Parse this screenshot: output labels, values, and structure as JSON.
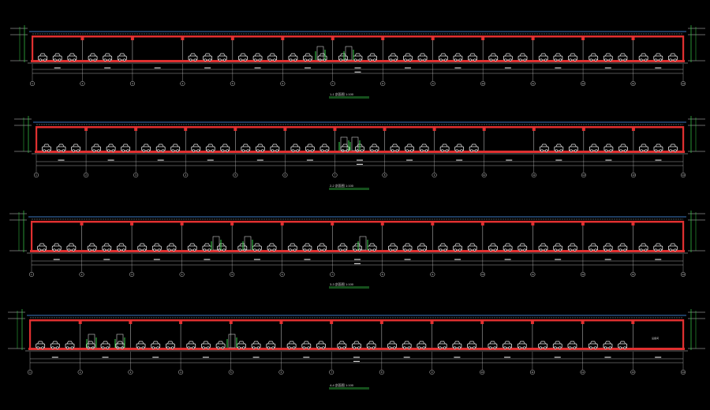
{
  "drawing": {
    "background": "#000000",
    "colors": {
      "structure": "#e03030",
      "roof_line": "#4fa0ff",
      "grid": "#39c8c8",
      "dimension": "#cfcfcf",
      "vehicle": "#e8e8e8",
      "door": "#39d24a",
      "title_underline": "#39d24a"
    },
    "sections": [
      {
        "title": "1-1 剖面图  1:100",
        "bays": 13,
        "axis_labels": [
          "1",
          "2",
          "3",
          "4",
          "5",
          "6",
          "7",
          "8",
          "9",
          "10",
          "11",
          "12",
          "13",
          "14"
        ]
      },
      {
        "title": "2-2 剖面图  1:100",
        "bays": 13,
        "axis_labels": [
          "1",
          "2",
          "3",
          "4",
          "5",
          "6",
          "7",
          "8",
          "9",
          "10",
          "11",
          "12",
          "13",
          "14"
        ]
      },
      {
        "title": "3-3 剖面图  1:100",
        "bays": 13,
        "axis_labels": [
          "1",
          "2",
          "3",
          "4",
          "5",
          "6",
          "7",
          "8",
          "9",
          "10",
          "11",
          "12",
          "13",
          "14"
        ]
      },
      {
        "title": "4-4 剖面图  1:100",
        "bays": 13,
        "axis_labels": [
          "1",
          "2",
          "3",
          "4",
          "5",
          "6",
          "7",
          "8",
          "9",
          "10",
          "11",
          "12",
          "13",
          "14"
        ],
        "room_note": "设备间"
      }
    ]
  }
}
